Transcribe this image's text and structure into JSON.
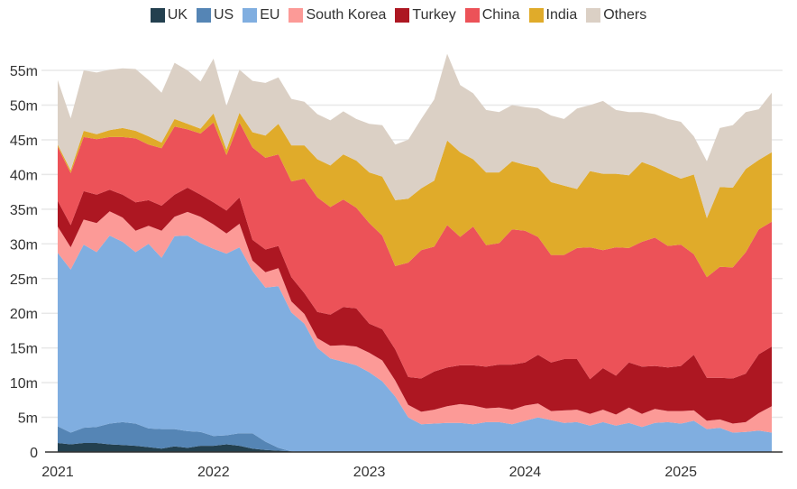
{
  "chart_data": {
    "type": "area",
    "stacked": true,
    "title": "",
    "xlabel": "",
    "ylabel": "",
    "ylim": [
      0,
      58
    ],
    "grid": true,
    "legend_position": "top",
    "x_start": "2021-01",
    "x_ticks": [
      "2021",
      "2022",
      "2023",
      "2024",
      "2025"
    ],
    "y_ticks": [
      "0",
      "5m",
      "10m",
      "15m",
      "20m",
      "25m",
      "30m",
      "35m",
      "40m",
      "45m",
      "50m",
      "55m"
    ],
    "y_tick_values": [
      0,
      5,
      10,
      15,
      20,
      25,
      30,
      35,
      40,
      45,
      50,
      55
    ],
    "months": 56,
    "series": [
      {
        "name": "UK",
        "color": "#23404f",
        "values": [
          1.3,
          1.1,
          1.3,
          1.3,
          1.1,
          1.0,
          0.9,
          0.7,
          0.5,
          0.8,
          0.6,
          0.9,
          0.9,
          1.1,
          0.9,
          0.5,
          0.3,
          0.2,
          0.1,
          0.0,
          0.0,
          0.0,
          0.0,
          0.0,
          0.0,
          0.0,
          0.0,
          0.0,
          0.0,
          0.0,
          0.0,
          0.0,
          0.0,
          0.0,
          0.0,
          0.0,
          0.0,
          0.0,
          0.0,
          0.0,
          0.0,
          0.0,
          0.0,
          0.0,
          0.0,
          0.0,
          0.0,
          0.0,
          0.0,
          0.0,
          0.0,
          0.0,
          0.0,
          0.0,
          0.0,
          0.0
        ]
      },
      {
        "name": "US",
        "color": "#5585b5",
        "values": [
          2.4,
          1.7,
          2.2,
          2.3,
          3.0,
          3.3,
          3.2,
          2.7,
          2.8,
          2.5,
          2.4,
          2.0,
          1.4,
          1.3,
          1.8,
          2.2,
          1.2,
          0.4,
          0.0,
          0.0,
          0.0,
          0.0,
          0.0,
          0.0,
          0.0,
          0.0,
          0.0,
          0.0,
          0.0,
          0.0,
          0.0,
          0.0,
          0.0,
          0.0,
          0.0,
          0.0,
          0.0,
          0.0,
          0.0,
          0.0,
          0.0,
          0.0,
          0.0,
          0.0,
          0.0,
          0.0,
          0.0,
          0.0,
          0.0,
          0.0,
          0.0,
          0.0,
          0.0,
          0.0,
          0.0,
          0.0
        ]
      },
      {
        "name": "EU",
        "color": "#80aee0",
        "values": [
          25.0,
          23.5,
          26.4,
          25.2,
          27.1,
          26.0,
          24.7,
          26.6,
          24.7,
          27.8,
          28.2,
          27.2,
          27.0,
          26.2,
          26.8,
          23.4,
          22.2,
          23.3,
          20.0,
          18.5,
          15.0,
          13.5,
          13.0,
          12.5,
          11.5,
          10.2,
          8.0,
          5.0,
          4.0,
          4.1,
          4.2,
          4.2,
          4.0,
          4.3,
          4.3,
          4.0,
          4.5,
          5.0,
          4.6,
          4.2,
          4.3,
          3.8,
          4.3,
          3.8,
          4.2,
          3.6,
          4.2,
          4.3,
          4.1,
          4.5,
          3.3,
          3.5,
          2.8,
          2.9,
          3.1,
          2.8
        ]
      },
      {
        "name": "South Korea",
        "color": "#fc9a97",
        "values": [
          3.8,
          3.2,
          3.6,
          4.2,
          3.5,
          3.5,
          3.1,
          2.6,
          3.9,
          2.8,
          3.4,
          3.8,
          3.5,
          2.9,
          3.4,
          1.5,
          2.2,
          2.6,
          1.6,
          1.4,
          1.4,
          1.8,
          2.4,
          2.7,
          2.8,
          3.0,
          2.3,
          1.8,
          1.8,
          2.0,
          2.4,
          2.7,
          2.7,
          2.0,
          2.1,
          2.1,
          2.2,
          2.0,
          1.3,
          1.8,
          1.8,
          1.7,
          1.8,
          1.6,
          2.2,
          1.9,
          2.0,
          1.6,
          1.8,
          1.5,
          1.2,
          1.2,
          1.3,
          1.4,
          2.5,
          3.8
        ]
      },
      {
        "name": "Turkey",
        "color": "#ad1722",
        "values": [
          3.7,
          3.2,
          4.1,
          4.1,
          3.1,
          3.3,
          4.1,
          3.7,
          3.6,
          3.2,
          3.5,
          3.2,
          3.2,
          3.3,
          3.8,
          3.0,
          3.3,
          3.2,
          3.5,
          3.0,
          3.8,
          4.5,
          5.5,
          5.5,
          4.2,
          4.5,
          4.5,
          4.0,
          4.8,
          5.5,
          5.6,
          5.6,
          5.8,
          6.0,
          6.2,
          6.5,
          6.2,
          7.0,
          7.0,
          7.4,
          7.3,
          5.0,
          6.0,
          5.6,
          6.5,
          6.8,
          6.2,
          6.3,
          6.5,
          8.0,
          6.2,
          6.0,
          6.5,
          7.0,
          8.5,
          8.6
        ]
      },
      {
        "name": "China",
        "color": "#ec5258",
        "values": [
          7.8,
          7.5,
          7.8,
          8.0,
          7.6,
          8.3,
          9.2,
          8.0,
          8.3,
          9.8,
          8.4,
          8.8,
          11.5,
          8.0,
          10.8,
          13.3,
          13.2,
          13.2,
          13.8,
          16.5,
          16.5,
          15.5,
          15.5,
          14.5,
          14.5,
          13.5,
          12.0,
          16.5,
          18.5,
          18.0,
          20.5,
          18.5,
          20.0,
          17.5,
          17.5,
          19.5,
          19.0,
          17.0,
          15.5,
          15.0,
          16.0,
          19.0,
          17.0,
          18.5,
          16.5,
          18.0,
          18.5,
          17.5,
          17.5,
          14.5,
          14.5,
          16.0,
          16.0,
          17.5,
          18.0,
          18.0
        ]
      },
      {
        "name": "India",
        "color": "#e0ab2a",
        "values": [
          0.3,
          0.4,
          0.9,
          0.7,
          1.0,
          1.3,
          1.1,
          1.2,
          0.8,
          1.1,
          0.8,
          0.7,
          1.3,
          0.8,
          1.4,
          2.2,
          3.2,
          4.4,
          5.2,
          4.8,
          5.5,
          6.0,
          6.5,
          6.8,
          7.3,
          8.5,
          9.5,
          9.2,
          8.9,
          9.5,
          12.2,
          12.2,
          9.7,
          10.5,
          10.2,
          9.8,
          9.5,
          10.0,
          10.5,
          10.0,
          8.5,
          11.0,
          11.0,
          10.6,
          10.5,
          11.5,
          10.2,
          10.5,
          9.5,
          11.5,
          8.5,
          11.5,
          11.5,
          12.0,
          10.0,
          10.0
        ]
      },
      {
        "name": "Others",
        "color": "#dbd0c5",
        "values": [
          9.3,
          7.5,
          8.7,
          8.9,
          8.7,
          8.6,
          8.9,
          8.1,
          7.2,
          8.1,
          7.7,
          6.8,
          7.9,
          6.3,
          6.2,
          7.4,
          7.6,
          6.7,
          6.7,
          6.3,
          6.5,
          6.5,
          6.2,
          6.0,
          7.0,
          7.4,
          8.0,
          8.5,
          10.0,
          11.7,
          12.5,
          9.7,
          9.5,
          9.0,
          8.7,
          8.1,
          8.3,
          8.5,
          9.6,
          9.6,
          11.6,
          9.5,
          10.5,
          9.2,
          9.1,
          7.2,
          7.6,
          7.8,
          8.2,
          5.5,
          8.2,
          8.5,
          9.0,
          8.2,
          7.3,
          8.6
        ]
      }
    ]
  }
}
